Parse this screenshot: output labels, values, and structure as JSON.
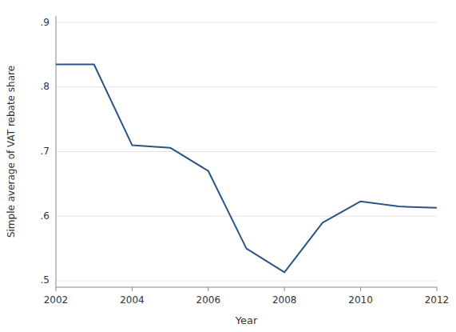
{
  "chart_data": {
    "type": "line",
    "x": [
      2002,
      2003,
      2004,
      2005,
      2006,
      2007,
      2008,
      2009,
      2010,
      2011,
      2012
    ],
    "values": [
      0.835,
      0.835,
      0.71,
      0.706,
      0.67,
      0.55,
      0.513,
      0.59,
      0.623,
      0.615,
      0.613
    ],
    "color": "#2a5585",
    "xlabel": "Year",
    "ylabel": "Simple average of VAT rebate share",
    "xlim": [
      2002,
      2012
    ],
    "ylim": [
      0.49,
      0.91
    ],
    "xticks": [
      2002,
      2004,
      2006,
      2008,
      2010,
      2012
    ],
    "yticks": [
      {
        "value": 0.5,
        "label": ".5"
      },
      {
        "value": 0.6,
        "label": ".6"
      },
      {
        "value": 0.7,
        "label": ".7"
      },
      {
        "value": 0.8,
        "label": ".8"
      },
      {
        "value": 0.9,
        "label": ".9"
      }
    ],
    "grid": true
  }
}
